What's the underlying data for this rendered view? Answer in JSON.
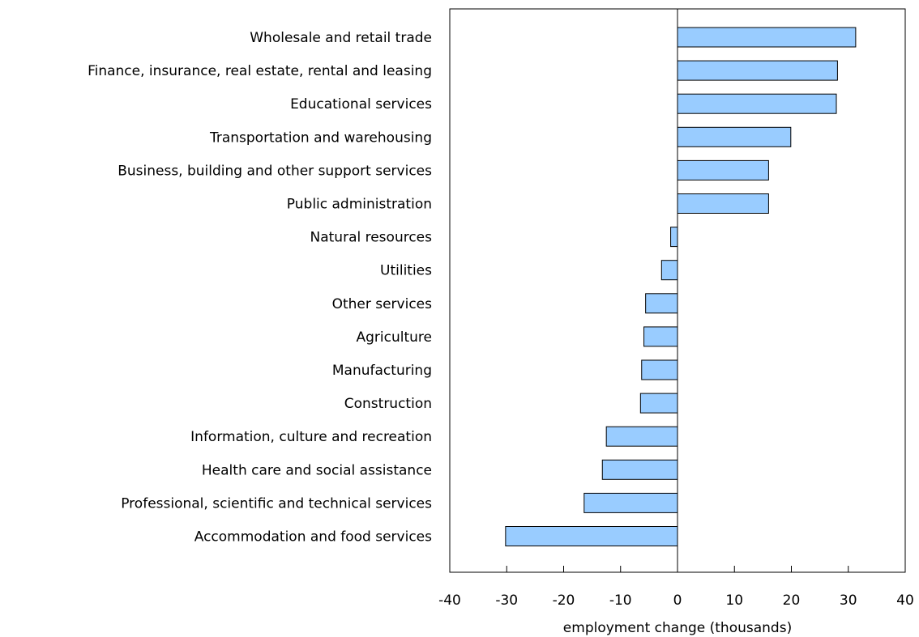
{
  "chart_data": {
    "type": "bar",
    "orientation": "horizontal",
    "title": "",
    "ylabel": "",
    "xlabel": "employment change (thousands)",
    "xlim": [
      -40,
      40
    ],
    "xticks": [
      -40,
      -30,
      -20,
      -10,
      0,
      10,
      20,
      30,
      40
    ],
    "grid": false,
    "legend": "none",
    "bar_color": "#99ccff",
    "bar_edge_color": "#000000",
    "categories": [
      "Wholesale and retail trade",
      "Finance, insurance, real estate, rental and leasing",
      "Educational services",
      "Transportation and warehousing",
      "Business, building and other support services",
      "Public administration",
      "Natural resources",
      "Utilities",
      "Other services",
      "Agriculture",
      "Manufacturing",
      "Construction",
      "Information, culture and recreation",
      "Health care and social assistance",
      "Professional, scientific and technical services",
      "Accommodation and food services"
    ],
    "values": [
      31.3,
      28.1,
      27.9,
      19.9,
      16.0,
      16.0,
      -1.2,
      -2.8,
      -5.6,
      -5.9,
      -6.3,
      -6.5,
      -12.5,
      -13.2,
      -16.4,
      -30.2
    ]
  }
}
